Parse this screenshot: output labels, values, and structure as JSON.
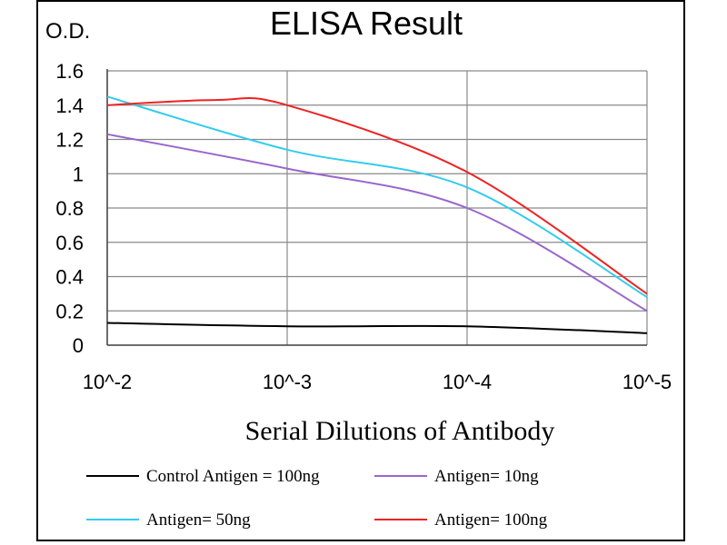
{
  "chart_data": {
    "type": "line",
    "title": "ELISA Result",
    "ylabel": "O.D.",
    "xlabel": "Serial Dilutions  of Antibody",
    "categories": [
      "10^-2",
      "10^-3",
      "10^-4",
      "10^-5"
    ],
    "yticks": [
      "0",
      "0.2",
      "0.4",
      "0.6",
      "0.8",
      "1",
      "1.2",
      "1.4",
      "1.6"
    ],
    "ylim": [
      0,
      1.6
    ],
    "grid": true,
    "legend_position": "bottom",
    "series": [
      {
        "name": "Control Antigen = 100ng",
        "color": "#000000",
        "points": [
          [
            0,
            0.13
          ],
          [
            1,
            0.11
          ],
          [
            2,
            0.11
          ],
          [
            3,
            0.07
          ]
        ]
      },
      {
        "name": "Antigen= 10ng",
        "color": "#9966cc",
        "points": [
          [
            0,
            1.23
          ],
          [
            1,
            1.03
          ],
          [
            2,
            0.8
          ],
          [
            3,
            0.2
          ]
        ]
      },
      {
        "name": "Antigen= 50ng",
        "color": "#33ccee",
        "points": [
          [
            0,
            1.45
          ],
          [
            1,
            1.14
          ],
          [
            2,
            0.92
          ],
          [
            3,
            0.28
          ]
        ]
      },
      {
        "name": "Antigen= 100ng",
        "color": "#ee2222",
        "points": [
          [
            0,
            1.4
          ],
          [
            0.6,
            1.43
          ],
          [
            1,
            1.4
          ],
          [
            2,
            1.01
          ],
          [
            3,
            0.3
          ]
        ]
      }
    ]
  }
}
